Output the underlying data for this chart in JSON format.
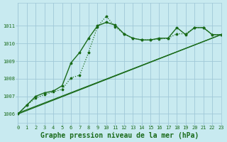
{
  "background_color": "#c8eaf0",
  "plot_bg_color": "#c8eaf0",
  "grid_color": "#a0c8d8",
  "line_color": "#1a6b1a",
  "marker_color": "#1a6b1a",
  "title": "Graphe pression niveau de la mer (hPa)",
  "xlim": [
    0,
    23
  ],
  "ylim": [
    1005.5,
    1012.3
  ],
  "ytick_values": [
    1006,
    1007,
    1008,
    1009,
    1010,
    1011
  ],
  "series1_x": [
    0,
    1,
    2,
    3,
    4,
    5,
    6,
    7,
    8,
    9,
    10,
    11,
    12,
    13,
    14,
    15,
    16,
    17,
    18,
    19,
    20,
    21,
    22,
    23
  ],
  "series1_y": [
    1006.0,
    1006.5,
    1006.9,
    1007.1,
    1007.25,
    1007.4,
    1008.05,
    1008.2,
    1009.5,
    1010.95,
    1011.55,
    1010.95,
    1010.55,
    1010.3,
    1010.2,
    1010.2,
    1010.25,
    1010.3,
    1010.55,
    1010.55,
    1010.9,
    1010.9,
    1010.5,
    1010.5
  ],
  "series2_x": [
    0,
    1,
    2,
    3,
    4,
    5,
    6,
    7,
    8,
    9,
    10,
    11,
    12,
    13,
    14,
    15,
    16,
    17,
    18,
    19,
    20,
    21,
    22,
    23
  ],
  "series2_y": [
    1006.0,
    1006.5,
    1007.0,
    1007.2,
    1007.3,
    1007.6,
    1008.9,
    1009.5,
    1010.3,
    1011.0,
    1011.2,
    1011.05,
    1010.55,
    1010.3,
    1010.2,
    1010.2,
    1010.3,
    1010.3,
    1010.9,
    1010.5,
    1010.9,
    1010.9,
    1010.5,
    1010.5
  ],
  "series3_x": [
    0,
    23
  ],
  "series3_y": [
    1006.0,
    1010.5
  ],
  "series4_x": [
    0,
    23
  ],
  "series4_y": [
    1006.05,
    1010.5
  ],
  "title_fontsize": 7,
  "tick_fontsize": 5
}
